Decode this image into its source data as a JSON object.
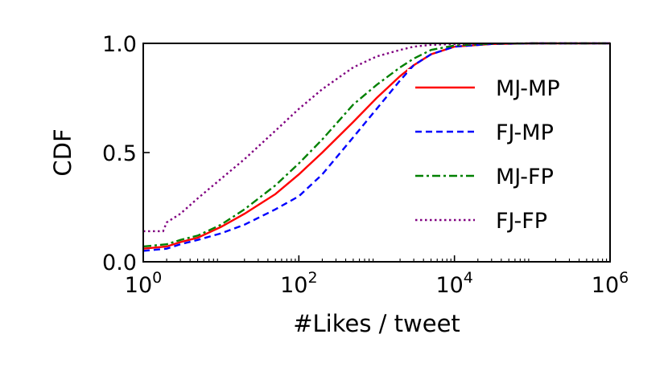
{
  "chart_data": {
    "type": "line",
    "xlabel": "#Likes / tweet",
    "ylabel": "CDF",
    "xscale": "log",
    "xlim": [
      1,
      1000000
    ],
    "ylim": [
      0,
      1
    ],
    "x_ticks": [
      {
        "value": 1,
        "base": "10",
        "exp": "0"
      },
      {
        "value": 100,
        "base": "10",
        "exp": "2"
      },
      {
        "value": 10000,
        "base": "10",
        "exp": "4"
      },
      {
        "value": 1000000,
        "base": "10",
        "exp": "6"
      }
    ],
    "y_ticks": [
      {
        "value": 0,
        "label": "0.0"
      },
      {
        "value": 0.5,
        "label": "0.5"
      },
      {
        "value": 1,
        "label": "1.0"
      }
    ],
    "grid": false,
    "legend_position": "right",
    "series": [
      {
        "name": "MJ-MP",
        "color": "#ff0000",
        "dash": "solid",
        "x": [
          1,
          2,
          3,
          5,
          10,
          20,
          50,
          100,
          200,
          500,
          1000,
          2000,
          3000,
          5000,
          10000,
          30000,
          100000,
          1000000
        ],
        "y": [
          0.06,
          0.07,
          0.09,
          0.11,
          0.16,
          0.22,
          0.31,
          0.4,
          0.5,
          0.64,
          0.75,
          0.85,
          0.9,
          0.95,
          0.985,
          0.997,
          1.0,
          1.0
        ]
      },
      {
        "name": "FJ-MP",
        "color": "#0000ff",
        "dash": "dashed",
        "x": [
          1,
          2,
          3,
          5,
          10,
          20,
          50,
          100,
          200,
          500,
          1000,
          2000,
          3000,
          5000,
          10000,
          30000,
          100000,
          1000000
        ],
        "y": [
          0.05,
          0.06,
          0.08,
          0.1,
          0.13,
          0.17,
          0.24,
          0.3,
          0.4,
          0.57,
          0.7,
          0.83,
          0.9,
          0.95,
          0.985,
          0.997,
          1.0,
          1.0
        ]
      },
      {
        "name": "MJ-FP",
        "color": "#008000",
        "dash": "dashdot",
        "x": [
          1,
          2,
          3,
          5,
          10,
          20,
          50,
          100,
          200,
          500,
          1000,
          2000,
          3000,
          5000,
          10000,
          30000,
          100000,
          1000000
        ],
        "y": [
          0.07,
          0.08,
          0.1,
          0.12,
          0.17,
          0.24,
          0.35,
          0.45,
          0.56,
          0.72,
          0.81,
          0.89,
          0.93,
          0.97,
          0.99,
          0.998,
          1.0,
          1.0
        ]
      },
      {
        "name": "FJ-FP",
        "color": "#800080",
        "dash": "dotted",
        "x": [
          1,
          1.8,
          2,
          3,
          5,
          10,
          20,
          50,
          100,
          200,
          500,
          1000,
          2000,
          3000,
          5000,
          10000,
          30000,
          100000,
          1000000
        ],
        "y": [
          0.14,
          0.14,
          0.18,
          0.22,
          0.29,
          0.38,
          0.47,
          0.6,
          0.7,
          0.79,
          0.89,
          0.94,
          0.97,
          0.985,
          0.993,
          0.997,
          0.999,
          1.0,
          1.0
        ]
      }
    ]
  }
}
